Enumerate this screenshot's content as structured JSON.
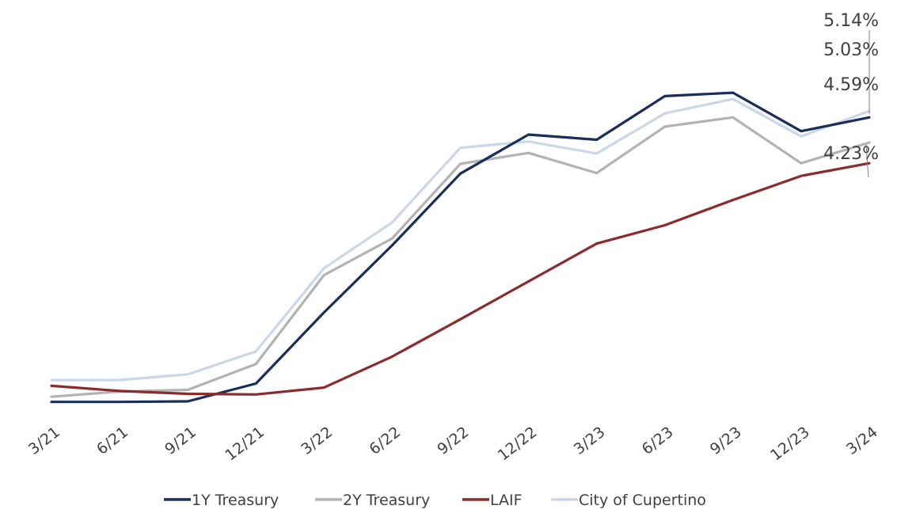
{
  "chart_data": {
    "type": "line",
    "categories": [
      "3/21",
      "6/21",
      "9/21",
      "12/21",
      "3/22",
      "6/22",
      "9/22",
      "12/22",
      "3/23",
      "6/23",
      "9/23",
      "12/23",
      "3/24"
    ],
    "series": [
      {
        "name": "1Y Treasury",
        "color": "#1a2e5c",
        "values": [
          0.07,
          0.07,
          0.08,
          0.39,
          1.63,
          2.8,
          4.05,
          4.73,
          4.64,
          5.4,
          5.46,
          4.79,
          5.03
        ]
      },
      {
        "name": "2Y Treasury",
        "color": "#b3b3b3",
        "values": [
          0.16,
          0.25,
          0.28,
          0.73,
          2.28,
          2.92,
          4.22,
          4.41,
          4.06,
          4.87,
          5.03,
          4.23,
          4.59
        ]
      },
      {
        "name": "LAIF",
        "color": "#8b2b2b",
        "values": [
          0.35,
          0.26,
          0.21,
          0.2,
          0.32,
          0.86,
          1.51,
          2.17,
          2.83,
          3.15,
          3.59,
          4.01,
          4.23
        ]
      },
      {
        "name": "City of Cupertino",
        "color": "#c9d7ea",
        "values": [
          0.45,
          0.45,
          0.55,
          0.95,
          2.4,
          3.2,
          4.5,
          4.61,
          4.4,
          5.1,
          5.35,
          4.7,
          5.14
        ]
      }
    ],
    "data_labels": [
      {
        "series": "City of Cupertino",
        "text": "5.14%"
      },
      {
        "series": "1Y Treasury",
        "text": "5.03%"
      },
      {
        "series": "2Y Treasury",
        "text": "4.59%"
      },
      {
        "series": "LAIF",
        "text": "4.23%"
      }
    ],
    "ylim": [
      -0.1,
      6.8
    ],
    "grid": false,
    "legend_position": "bottom"
  }
}
